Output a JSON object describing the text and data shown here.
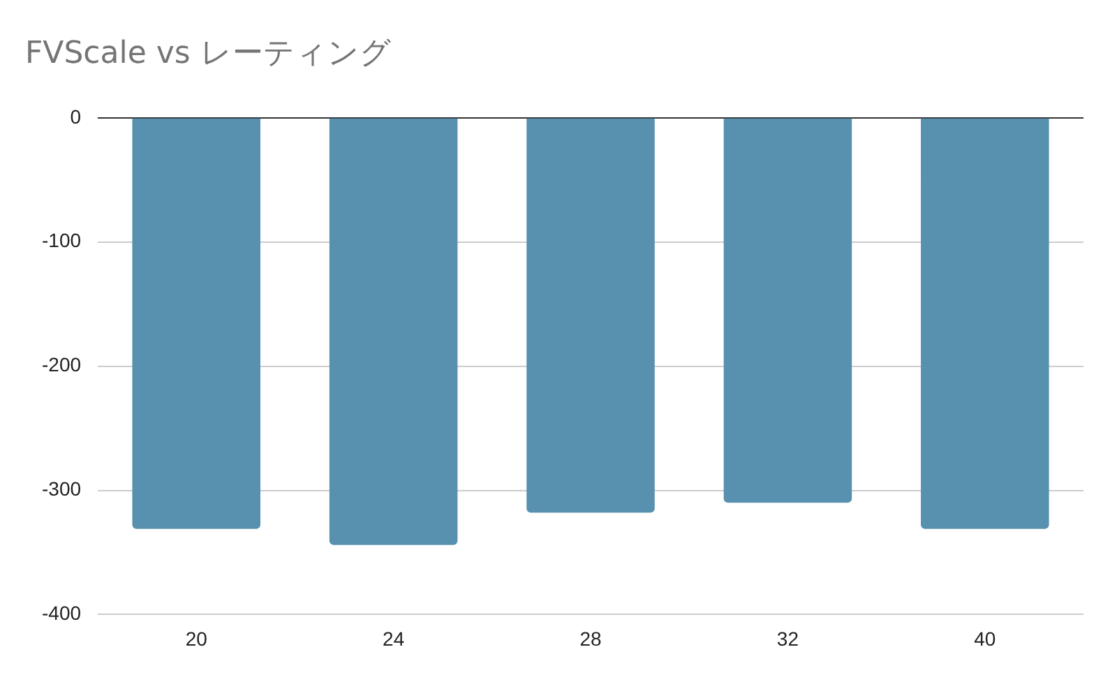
{
  "chart_data": {
    "type": "bar",
    "title": "FVScale vs レーティング",
    "categories": [
      "20",
      "24",
      "28",
      "32",
      "40"
    ],
    "values": [
      -331,
      -344,
      -318,
      -310,
      -331
    ],
    "color": "#5891af",
    "ylim": [
      -400,
      0
    ],
    "yticks": [
      -400,
      -300,
      -200,
      -100,
      0
    ],
    "grid": "y"
  }
}
